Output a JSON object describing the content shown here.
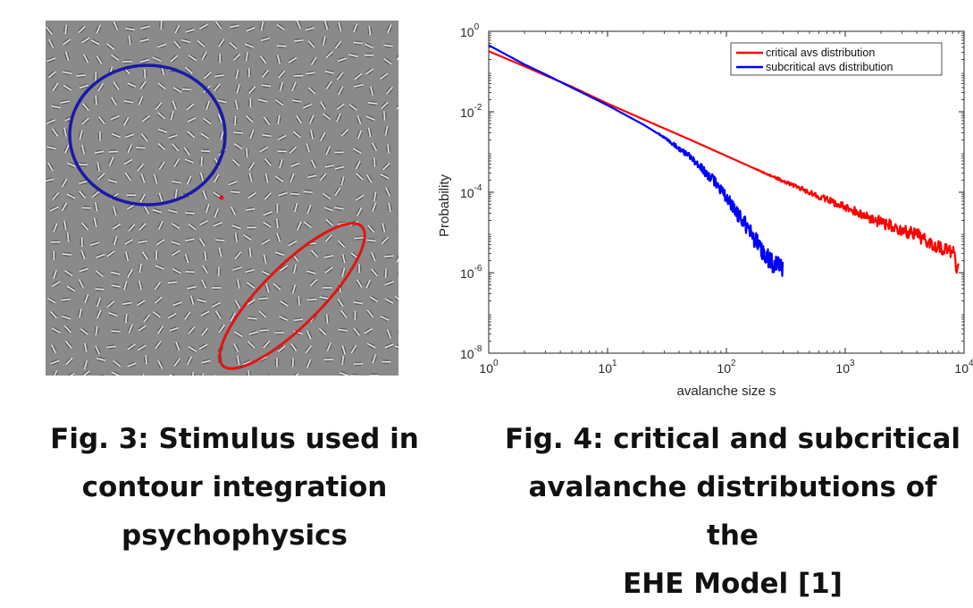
{
  "figure3": {
    "caption_lines": [
      "Fig. 3: Stimulus used in",
      "contour integration",
      "psychophysics"
    ],
    "colors": {
      "background": "#8a8a8a",
      "ellipse_blue": "#1a1aa6",
      "ellipse_red": "#e01515",
      "fixation_dot": "#e01515"
    }
  },
  "figure4": {
    "caption_lines": [
      "Fig. 4: critical and subcritical",
      "avalanche distributions of the",
      "EHE Model [1]"
    ]
  },
  "chart_data": {
    "type": "line",
    "xlabel": "avalanche size s",
    "ylabel": "Probability",
    "xscale": "log",
    "yscale": "log",
    "xlim": [
      1,
      10000
    ],
    "ylim": [
      1e-08,
      1
    ],
    "x_ticks": [
      {
        "value": 1,
        "base": "10",
        "exp": "0"
      },
      {
        "value": 10,
        "base": "10",
        "exp": "1"
      },
      {
        "value": 100,
        "base": "10",
        "exp": "2"
      },
      {
        "value": 1000,
        "base": "10",
        "exp": "3"
      },
      {
        "value": 10000,
        "base": "10",
        "exp": "4"
      }
    ],
    "y_ticks": [
      {
        "value": 1,
        "base": "10",
        "exp": "0"
      },
      {
        "value": 0.01,
        "base": "10",
        "exp": "-2"
      },
      {
        "value": 0.0001,
        "base": "10",
        "exp": "-4"
      },
      {
        "value": 1e-06,
        "base": "10",
        "exp": "-6"
      },
      {
        "value": 1e-08,
        "base": "10",
        "exp": "-8"
      }
    ],
    "grid": false,
    "legend_position": "top-right",
    "series": [
      {
        "name": "critical avs distribution",
        "color": "#ff0000",
        "x": [
          1,
          2,
          3,
          5,
          10,
          20,
          50,
          100,
          200,
          500,
          1000,
          2000,
          5000,
          8000,
          9000
        ],
        "y": [
          0.32,
          0.135,
          0.08,
          0.042,
          0.016,
          0.0065,
          0.002,
          0.0008,
          0.00032,
          0.0001,
          4.2e-05,
          1.8e-05,
          6.4e-06,
          3.2e-06,
          1.2e-06
        ]
      },
      {
        "name": "subcritical avs distribution",
        "color": "#0000ff",
        "x": [
          1,
          2,
          3,
          5,
          10,
          20,
          30,
          50,
          80,
          100,
          150,
          200,
          250,
          300
        ],
        "y": [
          0.45,
          0.15,
          0.085,
          0.04,
          0.0145,
          0.0048,
          0.0023,
          0.00075,
          0.00018,
          7.5e-05,
          1.3e-05,
          3.5e-06,
          1.5e-06,
          1.2e-06
        ]
      }
    ]
  }
}
